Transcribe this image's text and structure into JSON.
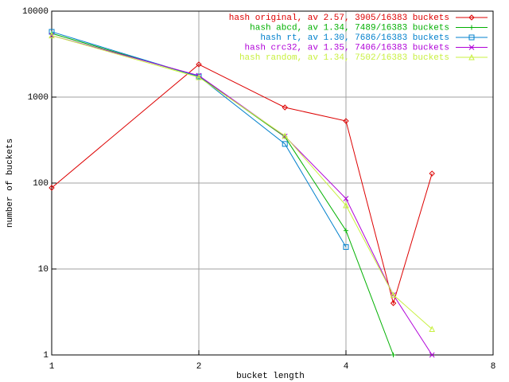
{
  "chart_data": {
    "type": "line",
    "x_label": "bucket length",
    "y_label": "number of buckets",
    "xlog": true,
    "ylog": true,
    "grid": true,
    "legend": "top-right",
    "xlim": [
      1,
      8
    ],
    "xticks": [
      1,
      2,
      4,
      8
    ],
    "ylim": [
      1,
      10000
    ],
    "yticks": [
      1,
      10,
      100,
      1000,
      10000
    ],
    "x": [
      1,
      2,
      3,
      4,
      5,
      6
    ],
    "series": [
      {
        "name": "hash original, av 2.57, 3905/16383 buckets",
        "color": "#dd0000",
        "marker": "diamond",
        "values": [
          88,
          2400,
          758,
          527,
          4,
          129
        ]
      },
      {
        "name": "hash abcd, av 1.34, 7489/16383 buckets",
        "color": "#00b000",
        "marker": "plus",
        "values": [
          5500,
          1740,
          345,
          28,
          1,
          null
        ]
      },
      {
        "name": "hash rt, av 1.30, 7686/16383 buckets",
        "color": "#0080cc",
        "marker": "square",
        "values": [
          5750,
          1740,
          285,
          18,
          null,
          null
        ]
      },
      {
        "name": "hash crc32, av 1.35, 7406/16383 buckets",
        "color": "#b000d8",
        "marker": "cross",
        "values": [
          5200,
          1780,
          350,
          66,
          5,
          1
        ]
      },
      {
        "name": "hash random, av 1.34, 7502/16383 buckets",
        "color": "#c8f040",
        "marker": "triangle",
        "values": [
          5200,
          1700,
          355,
          55,
          5,
          2
        ]
      }
    ]
  }
}
